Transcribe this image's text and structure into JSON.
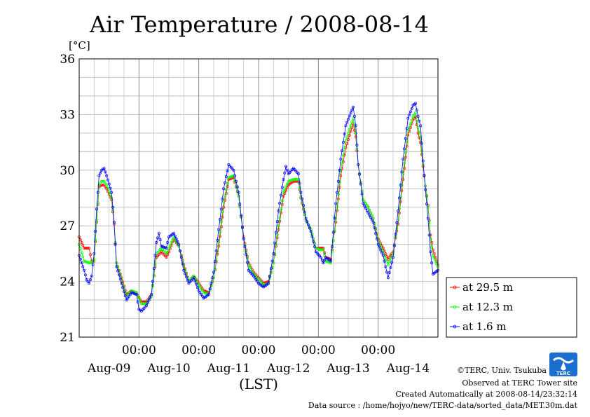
{
  "chart_data": {
    "type": "line",
    "title": "Air Temperature / 2008-08-14",
    "ylabel": "[°C]",
    "xlabel": "(LST)",
    "ylim": [
      21,
      36
    ],
    "yticks": [
      21,
      24,
      27,
      30,
      33,
      36
    ],
    "xlim_hours": [
      0,
      144
    ],
    "x_time_ticks": [
      "00:00",
      "00:00",
      "00:00",
      "00:00",
      "00:00"
    ],
    "x_date_labels": [
      "Aug-09",
      "Aug-10",
      "Aug-11",
      "Aug-12",
      "Aug-13",
      "Aug-14"
    ],
    "grid": true,
    "legend_position": "right",
    "series": [
      {
        "name": "at 29.5 m",
        "color": "#ff0000",
        "keypoints": [
          [
            0,
            26.4
          ],
          [
            2,
            25.8
          ],
          [
            4,
            25.8
          ],
          [
            5,
            25.1
          ],
          [
            6,
            25.1
          ],
          [
            7,
            27.2
          ],
          [
            8,
            29.1
          ],
          [
            9,
            29.2
          ],
          [
            10,
            29.2
          ],
          [
            11,
            29.0
          ],
          [
            13,
            28.4
          ],
          [
            14,
            27.1
          ],
          [
            15,
            25.0
          ],
          [
            17,
            24.2
          ],
          [
            19,
            23.3
          ],
          [
            21,
            23.5
          ],
          [
            23,
            23.4
          ],
          [
            25,
            22.9
          ],
          [
            27,
            22.9
          ],
          [
            29,
            23.3
          ],
          [
            31,
            25.3
          ],
          [
            33,
            25.6
          ],
          [
            35,
            25.3
          ],
          [
            36,
            25.6
          ],
          [
            38,
            26.3
          ],
          [
            40,
            25.9
          ],
          [
            42,
            24.9
          ],
          [
            44,
            24.0
          ],
          [
            46,
            24.3
          ],
          [
            48,
            23.9
          ],
          [
            50,
            23.5
          ],
          [
            52,
            23.4
          ],
          [
            54,
            24.2
          ],
          [
            56,
            25.9
          ],
          [
            58,
            28.0
          ],
          [
            60,
            29.5
          ],
          [
            62,
            29.6
          ],
          [
            64,
            28.6
          ],
          [
            66,
            26.4
          ],
          [
            68,
            25.0
          ],
          [
            70,
            24.5
          ],
          [
            72,
            24.2
          ],
          [
            74,
            23.9
          ],
          [
            76,
            24.0
          ],
          [
            78,
            25.0
          ],
          [
            80,
            26.8
          ],
          [
            82,
            28.6
          ],
          [
            84,
            29.2
          ],
          [
            86,
            29.4
          ],
          [
            88,
            29.4
          ],
          [
            89,
            28.5
          ],
          [
            91,
            27.3
          ],
          [
            93,
            26.8
          ],
          [
            95,
            25.8
          ],
          [
            97,
            25.8
          ],
          [
            98,
            25.8
          ],
          [
            99,
            25.3
          ],
          [
            101,
            25.2
          ],
          [
            103,
            27.2
          ],
          [
            105,
            29.7
          ],
          [
            107,
            31.2
          ],
          [
            109,
            32.1
          ],
          [
            110,
            32.5
          ],
          [
            111,
            31.8
          ],
          [
            112,
            30.3
          ],
          [
            114,
            28.4
          ],
          [
            116,
            28.0
          ],
          [
            118,
            27.4
          ],
          [
            120,
            26.3
          ],
          [
            122,
            25.8
          ],
          [
            124,
            25.2
          ],
          [
            126,
            25.6
          ],
          [
            128,
            27.1
          ],
          [
            130,
            29.5
          ],
          [
            132,
            31.9
          ],
          [
            134,
            32.7
          ],
          [
            135,
            32.9
          ],
          [
            136,
            32.0
          ],
          [
            137,
            31.5
          ],
          [
            138,
            30.2
          ],
          [
            140,
            28.1
          ],
          [
            141,
            26.5
          ],
          [
            142,
            25.7
          ],
          [
            144,
            24.9
          ]
        ]
      },
      {
        "name": "at 12.3 m",
        "color": "#00ff00",
        "keypoints": [
          [
            0,
            26.0
          ],
          [
            2,
            25.1
          ],
          [
            4,
            25.0
          ],
          [
            5,
            25.0
          ],
          [
            6,
            25.2
          ],
          [
            7,
            27.3
          ],
          [
            8,
            29.2
          ],
          [
            9,
            29.4
          ],
          [
            10,
            29.4
          ],
          [
            11,
            29.2
          ],
          [
            13,
            28.5
          ],
          [
            14,
            27.2
          ],
          [
            15,
            25.0
          ],
          [
            17,
            24.1
          ],
          [
            19,
            23.2
          ],
          [
            21,
            23.5
          ],
          [
            23,
            23.4
          ],
          [
            25,
            22.8
          ],
          [
            27,
            22.8
          ],
          [
            29,
            23.2
          ],
          [
            31,
            25.5
          ],
          [
            33,
            25.8
          ],
          [
            35,
            25.5
          ],
          [
            36,
            25.8
          ],
          [
            38,
            26.4
          ],
          [
            40,
            25.9
          ],
          [
            42,
            24.8
          ],
          [
            44,
            24.0
          ],
          [
            46,
            24.3
          ],
          [
            48,
            23.8
          ],
          [
            50,
            23.4
          ],
          [
            52,
            23.3
          ],
          [
            54,
            24.2
          ],
          [
            56,
            26.1
          ],
          [
            58,
            28.3
          ],
          [
            60,
            29.6
          ],
          [
            62,
            29.7
          ],
          [
            64,
            28.6
          ],
          [
            66,
            26.3
          ],
          [
            68,
            24.9
          ],
          [
            70,
            24.4
          ],
          [
            72,
            24.1
          ],
          [
            74,
            23.8
          ],
          [
            76,
            23.9
          ],
          [
            78,
            25.0
          ],
          [
            80,
            27.0
          ],
          [
            82,
            28.8
          ],
          [
            84,
            29.4
          ],
          [
            86,
            29.5
          ],
          [
            88,
            29.5
          ],
          [
            89,
            28.6
          ],
          [
            91,
            27.3
          ],
          [
            93,
            26.8
          ],
          [
            95,
            25.8
          ],
          [
            97,
            25.7
          ],
          [
            98,
            25.7
          ],
          [
            99,
            25.1
          ],
          [
            101,
            25.0
          ],
          [
            103,
            27.4
          ],
          [
            105,
            30.0
          ],
          [
            107,
            31.6
          ],
          [
            109,
            32.4
          ],
          [
            110,
            32.8
          ],
          [
            111,
            32.0
          ],
          [
            112,
            30.3
          ],
          [
            114,
            28.4
          ],
          [
            116,
            28.0
          ],
          [
            118,
            27.4
          ],
          [
            120,
            26.2
          ],
          [
            122,
            25.6
          ],
          [
            124,
            24.9
          ],
          [
            126,
            25.5
          ],
          [
            128,
            27.3
          ],
          [
            130,
            29.8
          ],
          [
            132,
            32.1
          ],
          [
            134,
            32.9
          ],
          [
            135,
            33.1
          ],
          [
            136,
            32.3
          ],
          [
            137,
            31.8
          ],
          [
            138,
            30.3
          ],
          [
            140,
            28.0
          ],
          [
            141,
            26.3
          ],
          [
            142,
            25.4
          ],
          [
            144,
            24.8
          ]
        ]
      },
      {
        "name": "at 1.6 m",
        "color": "#0000ff",
        "keypoints": [
          [
            0,
            25.4
          ],
          [
            2,
            24.6
          ],
          [
            3,
            24.1
          ],
          [
            4,
            23.9
          ],
          [
            5,
            24.3
          ],
          [
            6,
            25.5
          ],
          [
            7,
            27.9
          ],
          [
            8,
            29.7
          ],
          [
            9,
            30.0
          ],
          [
            10,
            30.1
          ],
          [
            11,
            29.7
          ],
          [
            13,
            28.8
          ],
          [
            14,
            27.2
          ],
          [
            15,
            24.8
          ],
          [
            17,
            23.9
          ],
          [
            19,
            23.0
          ],
          [
            21,
            23.4
          ],
          [
            23,
            23.3
          ],
          [
            24,
            22.5
          ],
          [
            25,
            22.4
          ],
          [
            27,
            22.7
          ],
          [
            29,
            23.3
          ],
          [
            31,
            26.1
          ],
          [
            32,
            26.6
          ],
          [
            33,
            25.9
          ],
          [
            35,
            25.8
          ],
          [
            36,
            26.4
          ],
          [
            38,
            26.6
          ],
          [
            40,
            26.0
          ],
          [
            42,
            24.6
          ],
          [
            44,
            23.9
          ],
          [
            46,
            24.2
          ],
          [
            48,
            23.5
          ],
          [
            50,
            23.1
          ],
          [
            52,
            23.3
          ],
          [
            54,
            24.5
          ],
          [
            56,
            26.8
          ],
          [
            58,
            29.0
          ],
          [
            60,
            30.3
          ],
          [
            62,
            30.0
          ],
          [
            64,
            28.8
          ],
          [
            66,
            26.3
          ],
          [
            68,
            24.6
          ],
          [
            70,
            24.3
          ],
          [
            72,
            23.9
          ],
          [
            74,
            23.7
          ],
          [
            76,
            23.9
          ],
          [
            78,
            25.5
          ],
          [
            80,
            27.8
          ],
          [
            82,
            29.5
          ],
          [
            83,
            30.2
          ],
          [
            84,
            29.8
          ],
          [
            86,
            30.1
          ],
          [
            88,
            29.8
          ],
          [
            89,
            28.8
          ],
          [
            91,
            27.4
          ],
          [
            93,
            26.7
          ],
          [
            95,
            25.6
          ],
          [
            97,
            25.3
          ],
          [
            98,
            25.0
          ],
          [
            99,
            25.3
          ],
          [
            101,
            25.1
          ],
          [
            103,
            28.2
          ],
          [
            105,
            30.6
          ],
          [
            107,
            32.4
          ],
          [
            109,
            33.1
          ],
          [
            110,
            33.4
          ],
          [
            111,
            32.4
          ],
          [
            112,
            30.3
          ],
          [
            114,
            28.2
          ],
          [
            116,
            27.7
          ],
          [
            118,
            27.2
          ],
          [
            120,
            26.0
          ],
          [
            122,
            25.4
          ],
          [
            124,
            24.2
          ],
          [
            126,
            25.3
          ],
          [
            128,
            27.8
          ],
          [
            130,
            30.6
          ],
          [
            132,
            32.8
          ],
          [
            134,
            33.5
          ],
          [
            135,
            33.6
          ],
          [
            136,
            32.9
          ],
          [
            137,
            32.4
          ],
          [
            138,
            30.5
          ],
          [
            140,
            27.4
          ],
          [
            141,
            25.6
          ],
          [
            142,
            24.4
          ],
          [
            144,
            24.6
          ]
        ]
      }
    ]
  },
  "footer": {
    "credit": "©TERC, Univ. Tsukuba",
    "site": "Observed at TERC Tower site",
    "created": "Created Automatically at 2008-08-14/23:32:14",
    "source": "Data source : /home/hojyo/new/TERC-data/sorted_data/MET.30m.dat",
    "logo_text": "TERC"
  }
}
